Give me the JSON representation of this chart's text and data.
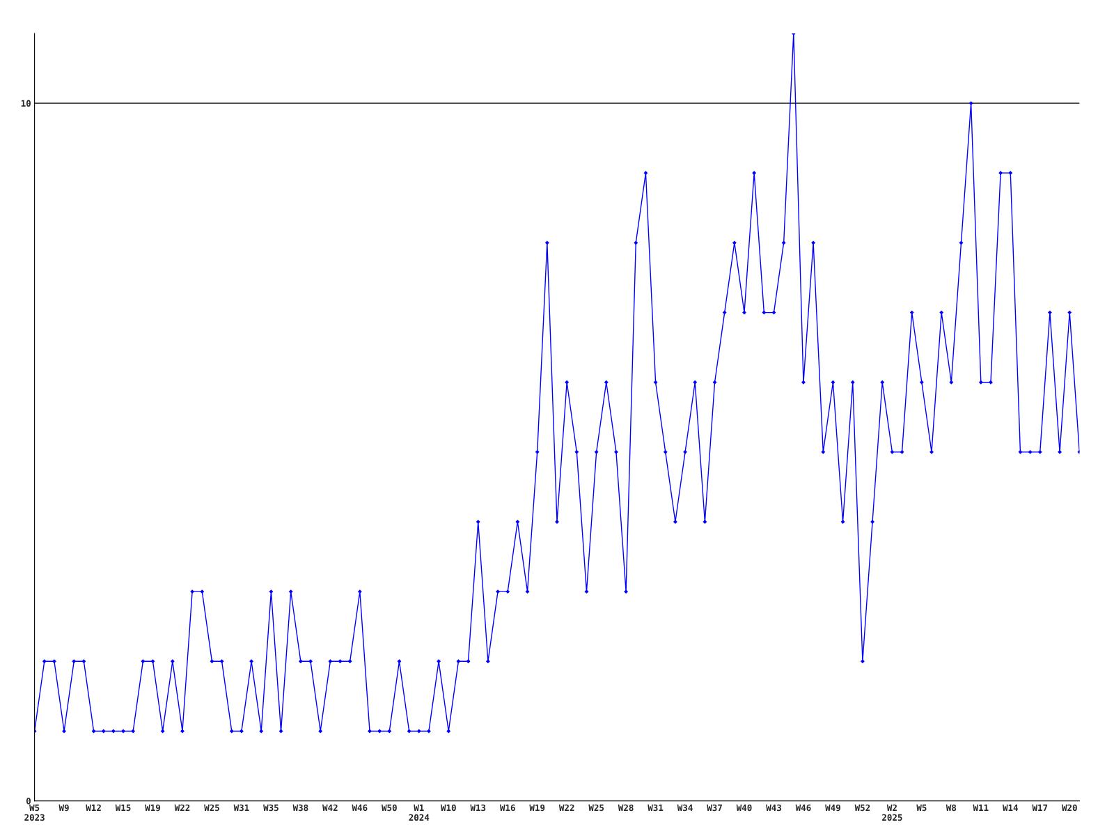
{
  "chart_data": {
    "type": "line",
    "categories": [
      "W5\n2023",
      null,
      null,
      "W9",
      null,
      null,
      "W12",
      null,
      null,
      "W15",
      null,
      null,
      "W19",
      null,
      null,
      "W22",
      null,
      null,
      "W25",
      null,
      null,
      "W31",
      null,
      null,
      "W35",
      null,
      null,
      "W38",
      null,
      null,
      "W42",
      null,
      null,
      "W46",
      null,
      null,
      "W50",
      null,
      null,
      "W1\n2024",
      null,
      null,
      "W10",
      null,
      null,
      "W13",
      null,
      null,
      "W16",
      null,
      null,
      "W19",
      null,
      null,
      "W22",
      null,
      null,
      "W25",
      null,
      null,
      "W28",
      null,
      null,
      "W31",
      null,
      null,
      "W34",
      null,
      null,
      "W37",
      null,
      null,
      "W40",
      null,
      null,
      "W43",
      null,
      null,
      "W46",
      null,
      null,
      "W49",
      null,
      null,
      "W52",
      null,
      null,
      "W2\n2025",
      null,
      null,
      "W5",
      null,
      null,
      "W8",
      null,
      null,
      "W11",
      null,
      null,
      "W14",
      null,
      null,
      "W17",
      null,
      null,
      "W20",
      null
    ],
    "series": [
      {
        "color": "#0000ff",
        "values": [
          1,
          2,
          2,
          1,
          2,
          2,
          1,
          1,
          1,
          1,
          1,
          2,
          2,
          1,
          2,
          1,
          3,
          3,
          2,
          2,
          1,
          1,
          2,
          1,
          3,
          1,
          3,
          2,
          2,
          1,
          2,
          2,
          2,
          3,
          1,
          1,
          1,
          2,
          1,
          1,
          1,
          2,
          1,
          2,
          2,
          4,
          2,
          3,
          3,
          4,
          3,
          5,
          8,
          4,
          6,
          5,
          3,
          5,
          6,
          5,
          3,
          8,
          9,
          6,
          5,
          4,
          5,
          6,
          4,
          6,
          7,
          8,
          7,
          9,
          7,
          7,
          8,
          11,
          6,
          8,
          5,
          6,
          4,
          6,
          2,
          4,
          6,
          5,
          5,
          7,
          6,
          5,
          7,
          6,
          8,
          10,
          6,
          6,
          9,
          9,
          5,
          5,
          5,
          7,
          5,
          7,
          5
        ]
      }
    ],
    "ylim": [
      0,
      11
    ],
    "yticks": [
      0,
      10
    ],
    "grid": "y",
    "marker": "diamond",
    "line_style": "solid"
  }
}
